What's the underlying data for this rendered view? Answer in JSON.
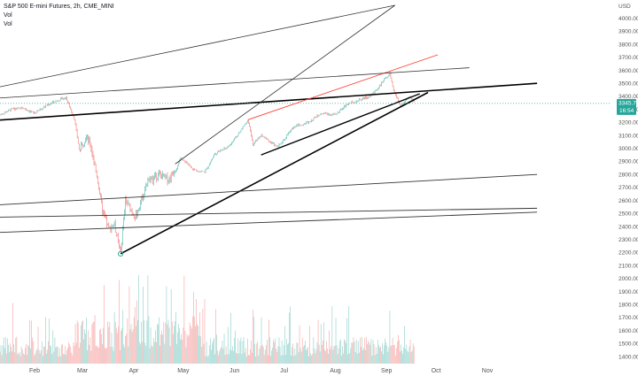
{
  "legend": {
    "symbol_title": "S&P 500 E-mini Futures, 2h, CME_MINI",
    "vol_label_1": "Vol",
    "vol_label_2": "Vol"
  },
  "chart_data": {
    "type": "candlestick",
    "currency_label": "USD",
    "y_ticks": [
      4100,
      4000,
      3900,
      3800,
      3700,
      3600,
      3500,
      3400,
      3300,
      3200,
      3100,
      3000,
      2900,
      2800,
      2700,
      2600,
      2500,
      2400,
      2300,
      2200,
      2100,
      2000,
      1900,
      1800,
      1700,
      1600,
      1500,
      1400
    ],
    "x_ticks": [
      "Feb",
      "Mar",
      "Apr",
      "May",
      "Jun",
      "Jul",
      "Aug",
      "Sep",
      "Oct",
      "Nov"
    ],
    "last_price": "3345.75",
    "countdown": "16:54",
    "price_path": [
      [
        "Jan 10",
        3260
      ],
      [
        "Jan 17",
        3300
      ],
      [
        "Jan 24",
        3310
      ],
      [
        "Jan 31",
        3270
      ],
      [
        "Feb 7",
        3330
      ],
      [
        "Feb 14",
        3370
      ],
      [
        "Feb 19",
        3390
      ],
      [
        "Feb 24",
        3230
      ],
      [
        "Feb 27",
        2980
      ],
      [
        "Mar 2",
        3090
      ],
      [
        "Mar 5",
        3020
      ],
      [
        "Mar 9",
        2760
      ],
      [
        "Mar 12",
        2510
      ],
      [
        "Mar 16",
        2380
      ],
      [
        "Mar 19",
        2420
      ],
      [
        "Mar 23",
        2190
      ],
      [
        "Mar 26",
        2600
      ],
      [
        "Apr 1",
        2470
      ],
      [
        "Apr 8",
        2740
      ],
      [
        "Apr 15",
        2800
      ],
      [
        "Apr 21",
        2760
      ],
      [
        "Apr 29",
        2930
      ],
      [
        "May 5",
        2840
      ],
      [
        "May 13",
        2820
      ],
      [
        "May 19",
        2960
      ],
      [
        "May 27",
        3010
      ],
      [
        "Jun 3",
        3120
      ],
      [
        "Jun 8",
        3220
      ],
      [
        "Jun 11",
        3030
      ],
      [
        "Jun 16",
        3100
      ],
      [
        "Jun 26",
        3010
      ],
      [
        "Jul 6",
        3170
      ],
      [
        "Jul 15",
        3200
      ],
      [
        "Jul 22",
        3270
      ],
      [
        "Jul 31",
        3260
      ],
      [
        "Aug 7",
        3340
      ],
      [
        "Aug 14",
        3370
      ],
      [
        "Aug 21",
        3400
      ],
      [
        "Aug 28",
        3500
      ],
      [
        "Sep 2",
        3580
      ],
      [
        "Sep 4",
        3450
      ],
      [
        "Sep 8",
        3330
      ],
      [
        "Sep 11",
        3360
      ],
      [
        "Sep 14",
        3400
      ],
      [
        "Sep 17",
        3345
      ]
    ],
    "trend_lines": [
      {
        "color": "#000000",
        "width": 1.6,
        "from": [
          "Jan 1",
          3210
        ],
        "to": [
          "Nov 30",
          3500
        ]
      },
      {
        "color": "#000000",
        "width": 1.6,
        "from": [
          "Mar 23",
          2190
        ],
        "to": [
          "Sep 25",
          3430
        ]
      },
      {
        "color": "#000000",
        "width": 1.4,
        "from": [
          "Jun 16",
          2950
        ],
        "to": [
          "Sep 20",
          3420
        ]
      },
      {
        "color": "#ff3b30",
        "width": 0.9,
        "from": [
          "Jun 8",
          3220
        ],
        "to": [
          "Oct 1",
          3720
        ]
      },
      {
        "color": "#333333",
        "width": 0.8,
        "from": [
          "Jan 1",
          3380
        ],
        "to": [
          "Oct 20",
          3620
        ]
      },
      {
        "color": "#333333",
        "width": 0.8,
        "from": [
          "Jan 1",
          3450
        ],
        "to": [
          "Sep 5",
          4100
        ]
      },
      {
        "color": "#333333",
        "width": 0.8,
        "from": [
          "Apr 25",
          2880
        ],
        "to": [
          "Sep 5",
          4100
        ]
      },
      {
        "color": "#333333",
        "width": 0.9,
        "from": [
          "Jan 1",
          2560
        ],
        "to": [
          "Nov 30",
          2800
        ]
      },
      {
        "color": "#333333",
        "width": 0.9,
        "from": [
          "Jan 1",
          2470
        ],
        "to": [
          "Nov 30",
          2540
        ]
      },
      {
        "color": "#333333",
        "width": 0.9,
        "from": [
          "Jan 1",
          2350
        ],
        "to": [
          "Nov 30",
          2510
        ]
      }
    ],
    "low_marker": [
      "Mar 23",
      2190
    ],
    "colors": {
      "up": "#26a69a",
      "down": "#ef5350",
      "last_price_tag": "#26a69a",
      "price_line": "#26a69a"
    }
  }
}
